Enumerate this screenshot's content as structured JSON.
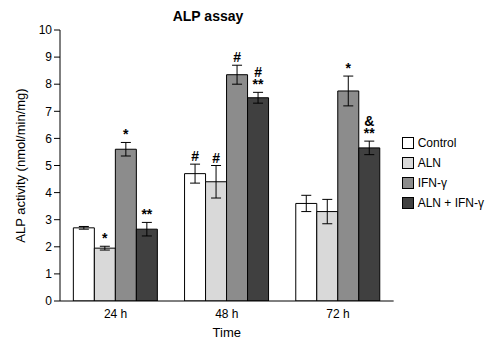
{
  "chart_data": {
    "type": "bar",
    "title": "ALP assay",
    "x_label": "Time",
    "y_label": "ALP activity (nmol/min/mg)",
    "categories": [
      "24 h",
      "48 h",
      "72 h"
    ],
    "ylim": [
      0,
      10
    ],
    "yticks": [
      0,
      1,
      2,
      3,
      4,
      5,
      6,
      7,
      8,
      9,
      10
    ],
    "legend": "right",
    "series": [
      {
        "name": "Control",
        "color": "#ffffff",
        "values": [
          2.7,
          4.7,
          3.6
        ],
        "errors": [
          0.05,
          0.35,
          0.3
        ],
        "annotations": [
          null,
          [
            "#"
          ],
          null
        ]
      },
      {
        "name": "ALN",
        "color": "#d9d9d9",
        "values": [
          1.95,
          4.4,
          3.3
        ],
        "errors": [
          0.07,
          0.6,
          0.45
        ],
        "annotations": [
          [
            "*"
          ],
          [
            "#"
          ],
          null
        ]
      },
      {
        "name": "IFN-γ",
        "color": "#8c8c8c",
        "values": [
          5.6,
          8.35,
          7.75
        ],
        "errors": [
          0.25,
          0.35,
          0.55
        ],
        "annotations": [
          [
            "*"
          ],
          [
            "#"
          ],
          [
            "*"
          ]
        ]
      },
      {
        "name": "ALN + IFN-γ",
        "color": "#404040",
        "values": [
          2.65,
          7.5,
          5.65
        ],
        "errors": [
          0.25,
          0.2,
          0.25
        ],
        "annotations": [
          [
            "**"
          ],
          [
            "#",
            "**"
          ],
          [
            "&",
            "**"
          ]
        ]
      }
    ]
  }
}
